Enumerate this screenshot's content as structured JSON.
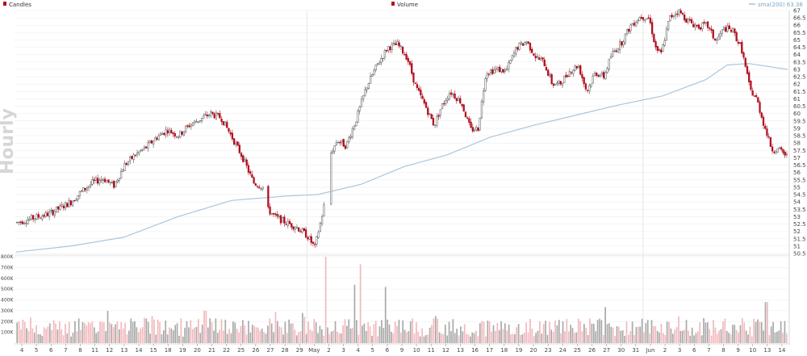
{
  "chart_data": {
    "type": "candlestick",
    "watermark": "Hourly",
    "legend": {
      "candles": "Candles",
      "volume": "Volume",
      "sma": "sma(200) 63.38"
    },
    "colors": {
      "up": "#555555",
      "down": "#b01020",
      "up_volume": "#a8a8a8",
      "down_volume": "#f2b8bc",
      "sma": "#a9c6dd",
      "grid": "#eeeeee"
    },
    "price_axis": {
      "min": 50.5,
      "max": 67,
      "ticks": [
        "50.5",
        "51",
        "51.5",
        "52",
        "52.5",
        "53",
        "53.5",
        "54",
        "54.5",
        "55",
        "55.5",
        "56",
        "56.5",
        "57",
        "57.5",
        "58",
        "58.5",
        "59",
        "59.5",
        "60",
        "60.5",
        "61",
        "61.5",
        "62",
        "62.5",
        "63",
        "63.5",
        "64",
        "64.5",
        "65",
        "65.5",
        "66",
        "66.5",
        "67"
      ]
    },
    "volume_axis": {
      "min": 0,
      "max": 800000,
      "ticks": [
        "100K",
        "200K",
        "300K",
        "400K",
        "500K",
        "600K",
        "700K",
        "800K"
      ]
    },
    "time_axis": {
      "labels": [
        "4",
        "5",
        "6",
        "7",
        "8",
        "11",
        "12",
        "13",
        "14",
        "15",
        "18",
        "19",
        "20",
        "21",
        "22",
        "25",
        "26",
        "27",
        "28",
        "29",
        "May",
        "2",
        "3",
        "4",
        "5",
        "6",
        "9",
        "10",
        "11",
        "12",
        "13",
        "16",
        "17",
        "18",
        "19",
        "20",
        "23",
        "24",
        "25",
        "26",
        "27",
        "30",
        "31",
        "Jun",
        "2",
        "3",
        "6",
        "7",
        "8",
        "9",
        "10",
        "13",
        "14"
      ],
      "separators": [
        "May",
        "Jun"
      ]
    },
    "price_path": [
      [
        0,
        52.6
      ],
      [
        1,
        52.8
      ],
      [
        2,
        53.0
      ],
      [
        3,
        53.2
      ],
      [
        4,
        53.6
      ],
      [
        5,
        54.0
      ],
      [
        6,
        54.7
      ],
      [
        7,
        55.3
      ],
      [
        8,
        55.6
      ],
      [
        9,
        55.1
      ],
      [
        10,
        56.5
      ],
      [
        11,
        57.2
      ],
      [
        12,
        57.7
      ],
      [
        13,
        58.4
      ],
      [
        14,
        58.9
      ],
      [
        15,
        58.5
      ],
      [
        16,
        59.2
      ],
      [
        17,
        59.6
      ],
      [
        18,
        60.0
      ],
      [
        19,
        59.7
      ],
      [
        20,
        58.4
      ],
      [
        21,
        57.0
      ],
      [
        22,
        55.3
      ],
      [
        22.9,
        55.0
      ],
      [
        23.3,
        53.5
      ],
      [
        24,
        53.0
      ],
      [
        25,
        52.6
      ],
      [
        26,
        52.3
      ],
      [
        27,
        51.7
      ],
      [
        27.7,
        50.9
      ],
      [
        28.5,
        53.5
      ],
      [
        29.2,
        57.3
      ],
      [
        29.8,
        58.2
      ],
      [
        30.6,
        57.8
      ],
      [
        31.5,
        59.5
      ],
      [
        32.5,
        61.8
      ],
      [
        33.5,
        63.3
      ],
      [
        34.5,
        64.5
      ],
      [
        35.4,
        64.7
      ],
      [
        36.3,
        63.8
      ],
      [
        37.1,
        61.8
      ],
      [
        38,
        60.5
      ],
      [
        38.8,
        59.2
      ],
      [
        39.5,
        60.5
      ],
      [
        40.3,
        61.5
      ],
      [
        41.3,
        60.8
      ],
      [
        42.2,
        58.9
      ],
      [
        42.9,
        59.0
      ],
      [
        43.6,
        62.8
      ],
      [
        44.6,
        63.0
      ],
      [
        45.5,
        62.9
      ],
      [
        46.5,
        64.5
      ],
      [
        47.4,
        64.9
      ],
      [
        48.3,
        63.8
      ],
      [
        49,
        63.5
      ],
      [
        49.8,
        62.0
      ],
      [
        50.5,
        62.0
      ],
      [
        51.3,
        62.8
      ],
      [
        52.2,
        63.3
      ],
      [
        53,
        61.5
      ],
      [
        53.8,
        62.8
      ],
      [
        54.6,
        62.5
      ],
      [
        55.3,
        64.0
      ],
      [
        56.2,
        64.8
      ],
      [
        57.1,
        66.0
      ],
      [
        58,
        66.6
      ],
      [
        58.8,
        66.5
      ],
      [
        59.4,
        64.5
      ],
      [
        59.9,
        64.0
      ],
      [
        60.7,
        66.5
      ],
      [
        61.5,
        67.0
      ],
      [
        62.4,
        66.3
      ],
      [
        63.3,
        65.9
      ],
      [
        64.2,
        66.0
      ],
      [
        65,
        64.9
      ],
      [
        65.8,
        65.8
      ],
      [
        66.6,
        65.6
      ],
      [
        67.4,
        64.4
      ],
      [
        68.2,
        61.6
      ],
      [
        68.8,
        61.0
      ],
      [
        69.5,
        59.2
      ],
      [
        70.2,
        57.6
      ],
      [
        71,
        57.5
      ],
      [
        71.6,
        57.1
      ]
    ],
    "sma_path": [
      [
        0,
        50.6
      ],
      [
        5,
        51.0
      ],
      [
        10,
        51.6
      ],
      [
        15,
        53.0
      ],
      [
        20,
        54.1
      ],
      [
        25,
        54.4
      ],
      [
        28,
        54.5
      ],
      [
        32,
        55.2
      ],
      [
        36,
        56.4
      ],
      [
        40,
        57.2
      ],
      [
        44,
        58.4
      ],
      [
        48,
        59.2
      ],
      [
        52,
        59.9
      ],
      [
        56,
        60.6
      ],
      [
        60,
        61.2
      ],
      [
        64,
        62.3
      ],
      [
        66,
        63.3
      ],
      [
        68,
        63.4
      ],
      [
        71.6,
        63.0
      ]
    ],
    "tall_volume_bars": [
      [
        28.7,
        800000
      ],
      [
        31.4,
        540000
      ],
      [
        32.0,
        730000
      ],
      [
        34.3,
        520000
      ],
      [
        17.5,
        300000
      ],
      [
        69.7,
        380000
      ]
    ]
  }
}
